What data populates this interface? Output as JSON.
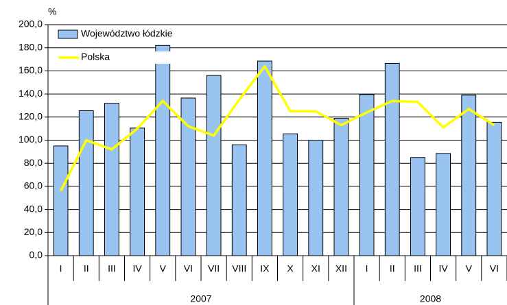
{
  "chart_data": {
    "type": "bar_line",
    "y_axis_label": "%",
    "categories": [
      "I",
      "II",
      "III",
      "IV",
      "V",
      "VI",
      "VII",
      "VIII",
      "IX",
      "X",
      "XI",
      "XII",
      "I",
      "II",
      "III",
      "IV",
      "V",
      "VI"
    ],
    "x_groups": [
      {
        "name": "2007",
        "count": 12
      },
      {
        "name": "2008",
        "count": 6
      }
    ],
    "series": [
      {
        "name": "Województwo łódzkie",
        "type": "bar",
        "color": "#99c4f2",
        "values": [
          95,
          125.5,
          132,
          110.5,
          182,
          136.5,
          156,
          96,
          168.5,
          105.5,
          100,
          119,
          139.5,
          166.5,
          85,
          88.5,
          139,
          115.5
        ]
      },
      {
        "name": "Polska",
        "type": "line",
        "color": "#ffff00",
        "values": [
          56,
          100,
          92,
          110,
          134,
          112,
          104,
          135,
          164,
          125,
          125,
          113,
          124,
          134,
          133,
          111,
          127,
          113
        ]
      }
    ],
    "ylim": [
      0,
      200
    ],
    "yticks": [
      {
        "value": 0,
        "label": "0,0"
      },
      {
        "value": 20,
        "label": "20,0"
      },
      {
        "value": 40,
        "label": "40,0"
      },
      {
        "value": 60,
        "label": "60,0"
      },
      {
        "value": 80,
        "label": "80,0"
      },
      {
        "value": 100,
        "label": "100,0"
      },
      {
        "value": 120,
        "label": "120,0"
      },
      {
        "value": 140,
        "label": "140,0"
      },
      {
        "value": 160,
        "label": "160,0"
      },
      {
        "value": 180,
        "label": "180,0"
      },
      {
        "value": 200,
        "label": "200,0"
      }
    ],
    "grid": true,
    "legend": "top-left"
  }
}
